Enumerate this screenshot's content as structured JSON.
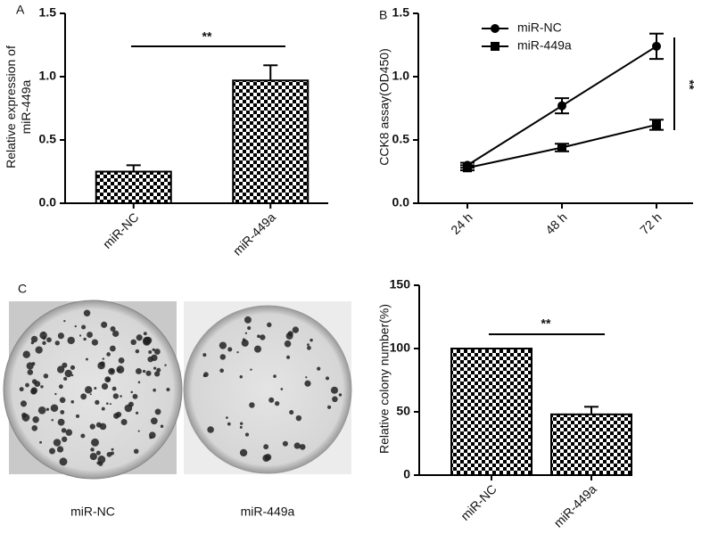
{
  "chart_data": [
    {
      "type": "bar",
      "panel_label": "A",
      "ylabel": [
        "Relative expression of",
        "miR-449a"
      ],
      "categories": [
        "miR-NC",
        "miR-449a"
      ],
      "values": [
        0.25,
        0.97
      ],
      "errors": [
        0.05,
        0.12
      ],
      "ylim": [
        0,
        1.5
      ],
      "yticks": [
        {
          "value": 0,
          "label": "0.0"
        },
        0.5,
        {
          "value": 1,
          "label": "1.0"
        },
        1.5
      ],
      "annotation": "**",
      "color": "#000000"
    },
    {
      "type": "line",
      "panel_label": "B",
      "ylabel": [
        "CCK8 assay(OD450)"
      ],
      "categories": [
        "24 h",
        "48 h",
        "72 h"
      ],
      "series": [
        {
          "name": "miR-NC",
          "color": "#000000",
          "marker": "circle",
          "values": [
            0.3,
            0.77,
            1.24
          ],
          "errors": [
            0.02,
            0.06,
            0.1
          ]
        },
        {
          "name": "miR-449a",
          "color": "#000000",
          "marker": "square",
          "values": [
            0.28,
            0.44,
            0.62
          ],
          "errors": [
            0.02,
            0.03,
            0.04
          ]
        }
      ],
      "ylim": [
        0,
        1.5
      ],
      "yticks": [
        {
          "value": 0,
          "label": "0.0"
        },
        0.5,
        {
          "value": 1,
          "label": "1.0"
        },
        1.5
      ],
      "annotation": "**",
      "legend": "upper left"
    },
    {
      "type": "bar",
      "panel_label": "C",
      "ylabel": [
        "Relative colony number(%)"
      ],
      "categories": [
        "miR-NC",
        "miR-449a"
      ],
      "values": [
        100,
        48
      ],
      "errors": [
        0,
        6
      ],
      "ylim": [
        0,
        150
      ],
      "yticks": [
        0,
        50,
        100,
        150
      ],
      "annotation": "**",
      "color": "#000000",
      "image_labels": [
        "miR-NC",
        "miR-449a"
      ]
    }
  ]
}
